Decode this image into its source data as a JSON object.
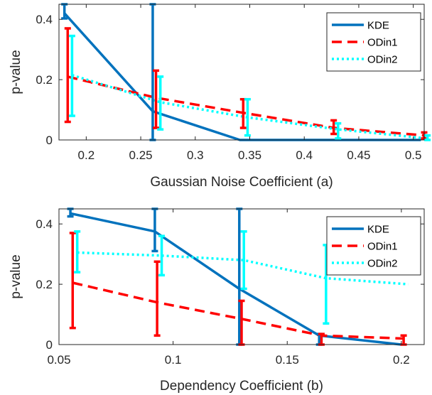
{
  "chart_data": [
    {
      "type": "line",
      "xlabel": "Gaussian Noise Coefficient (a)",
      "ylabel": "p-value",
      "xlim": [
        0.175,
        0.51
      ],
      "ylim": [
        0,
        0.45
      ],
      "xticks": [
        "0.2",
        "0.25",
        "0.3",
        "0.35",
        "0.4",
        "0.45",
        "0.5"
      ],
      "yticks": [
        "0",
        "0.2",
        "0.4"
      ],
      "legend_position": "top-right",
      "series": [
        {
          "name": "KDE",
          "color": "#0072bd",
          "style": "solid",
          "x": [
            0.18,
            0.261,
            0.341,
            0.424,
            0.507
          ],
          "y": [
            0.42,
            0.095,
            0.0,
            0.0,
            0.0
          ],
          "err_low": [
            0.403,
            0.0,
            0.0,
            0.0,
            0.0
          ],
          "err_high": [
            0.45,
            0.45,
            0.0,
            0.0,
            0.0
          ]
        },
        {
          "name": "ODin1",
          "color": "#ff0000",
          "style": "dashed",
          "x": [
            0.183,
            0.264,
            0.344,
            0.427,
            0.51
          ],
          "y": [
            0.21,
            0.14,
            0.09,
            0.04,
            0.015
          ],
          "err_low": [
            0.06,
            0.04,
            0.04,
            0.02,
            0.005
          ],
          "err_high": [
            0.37,
            0.23,
            0.135,
            0.065,
            0.025
          ]
        },
        {
          "name": "ODin2",
          "color": "#00ffff",
          "style": "dotted",
          "x": [
            0.187,
            0.268,
            0.348,
            0.431,
            0.513
          ],
          "y": [
            0.215,
            0.125,
            0.075,
            0.035,
            0.005
          ],
          "err_low": [
            0.08,
            0.035,
            0.015,
            0.005,
            0.0
          ],
          "err_high": [
            0.345,
            0.21,
            0.135,
            0.055,
            0.015
          ]
        }
      ]
    },
    {
      "type": "line",
      "xlabel": "Dependency Coefficient (b)",
      "ylabel": "p-value",
      "xlim": [
        0.05,
        0.21
      ],
      "ylim": [
        0,
        0.45
      ],
      "xticks": [
        "0.05",
        "0.1",
        "0.15",
        "0.2"
      ],
      "yticks": [
        "0",
        "0.2",
        "0.4"
      ],
      "legend_position": "top-right",
      "series": [
        {
          "name": "KDE",
          "color": "#0072bd",
          "style": "solid",
          "x": [
            0.055,
            0.092,
            0.129,
            0.164,
            0.2
          ],
          "y": [
            0.435,
            0.375,
            0.185,
            0.03,
            0.0
          ],
          "err_low": [
            0.425,
            0.31,
            0.0,
            0.0,
            0.0
          ],
          "err_high": [
            0.45,
            0.45,
            0.45,
            0.035,
            0.0
          ]
        },
        {
          "name": "ODin1",
          "color": "#ff0000",
          "style": "dashed",
          "x": [
            0.056,
            0.093,
            0.13,
            0.165,
            0.201
          ],
          "y": [
            0.205,
            0.14,
            0.085,
            0.03,
            0.02
          ],
          "err_low": [
            0.055,
            0.03,
            0.0,
            0.0,
            0.0
          ],
          "err_high": [
            0.37,
            0.275,
            0.145,
            0.035,
            0.03
          ]
        },
        {
          "name": "ODin2",
          "color": "#00ffff",
          "style": "dotted",
          "x": [
            0.058,
            0.095,
            0.131,
            0.167,
            0.203
          ],
          "y": [
            0.305,
            0.295,
            0.28,
            0.22,
            0.2
          ],
          "err_low": [
            0.24,
            0.23,
            0.185,
            0.07,
            0.0
          ],
          "err_high": [
            0.375,
            0.36,
            0.375,
            0.33,
            0.0
          ]
        }
      ]
    }
  ]
}
